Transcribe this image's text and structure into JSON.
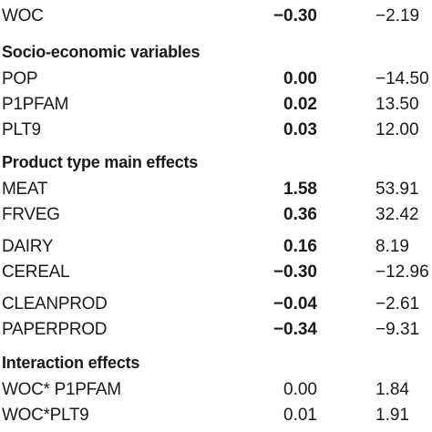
{
  "rows_top": [
    {
      "label": "WOC",
      "coef": "−0.30",
      "t": "−2.19"
    }
  ],
  "sections": [
    {
      "heading": "Socio-economic variables",
      "rows": [
        {
          "label": "POP",
          "coef": "0.00",
          "t": "−14.50"
        },
        {
          "label": "P1PFAM",
          "coef": "0.02",
          "t": "13.50"
        },
        {
          "label": "PLT9",
          "coef": "0.03",
          "t": "12.00"
        }
      ]
    },
    {
      "heading": "Product type main effects",
      "rows": [
        {
          "label": "MEAT",
          "coef": "1.58",
          "t": "53.91"
        },
        {
          "label": "FRVEG",
          "coef": "0.36",
          "t": "32.42"
        },
        {
          "label": "DAIRY",
          "coef": "0.16",
          "t": "8.19"
        },
        {
          "label": "CEREAL",
          "coef": "−0.30",
          "t": "−12.96"
        },
        {
          "label": "CLEANPROD",
          "coef": "−0.04",
          "t": "−2.61"
        },
        {
          "label": "PAPERPROD",
          "coef": "−0.34",
          "t": "−9.31"
        }
      ]
    },
    {
      "heading": "Interaction effects",
      "rows": [
        {
          "label": "WOC* P1PFAM",
          "coef": "0.00",
          "t": "1.84"
        },
        {
          "label": "WOC*PLT9",
          "coef": "0.01",
          "t": "1.91"
        }
      ]
    }
  ]
}
